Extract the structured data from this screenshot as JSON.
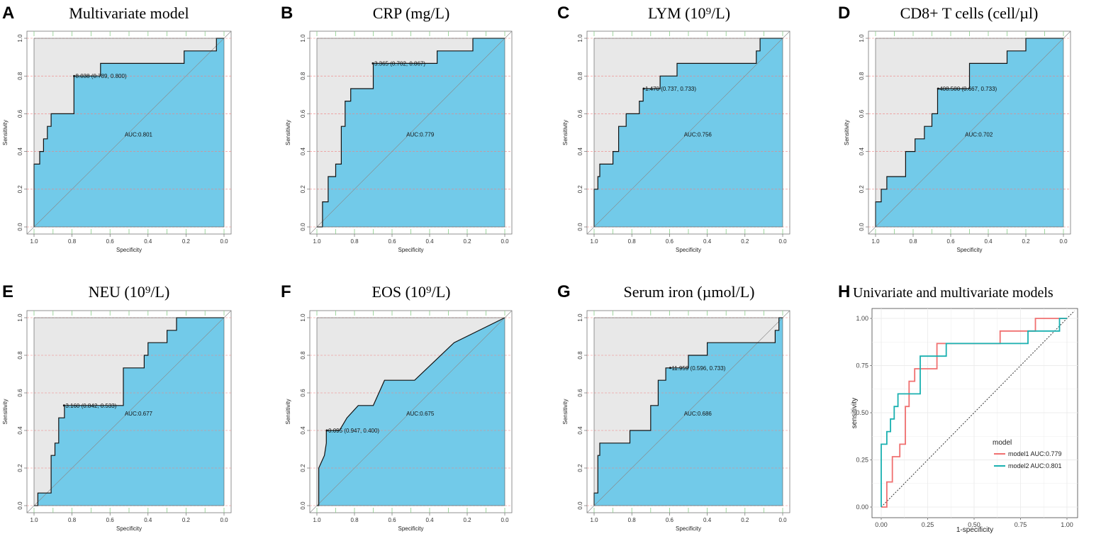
{
  "figure_labels": [
    "A",
    "B",
    "C",
    "D",
    "E",
    "F",
    "G",
    "H"
  ],
  "chart_data": [
    {
      "panel": "A",
      "type": "line",
      "title": "Multivariate model",
      "xlabel": "Specificity",
      "ylabel": "Sensitivity",
      "xlim": [
        1.0,
        0.0
      ],
      "ylim": [
        0.0,
        1.0
      ],
      "xticks": [
        "1.0",
        "0.8",
        "0.6",
        "0.4",
        "0.2",
        "0.0"
      ],
      "yticks": [
        "0.0",
        "0.2",
        "0.4",
        "0.6",
        "0.8",
        "1.0"
      ],
      "auc_label": "AUC:0.801",
      "threshold_label": "8.038 (0.789, 0.800)",
      "threshold_point": {
        "specificity": 0.789,
        "sensitivity": 0.8
      },
      "roc": [
        [
          1.0,
          0.0
        ],
        [
          1.0,
          0.333
        ],
        [
          0.97,
          0.333
        ],
        [
          0.97,
          0.4
        ],
        [
          0.95,
          0.4
        ],
        [
          0.95,
          0.467
        ],
        [
          0.93,
          0.467
        ],
        [
          0.93,
          0.533
        ],
        [
          0.91,
          0.533
        ],
        [
          0.91,
          0.6
        ],
        [
          0.79,
          0.6
        ],
        [
          0.79,
          0.8
        ],
        [
          0.65,
          0.8
        ],
        [
          0.65,
          0.867
        ],
        [
          0.21,
          0.867
        ],
        [
          0.21,
          0.933
        ],
        [
          0.04,
          0.933
        ],
        [
          0.04,
          1.0
        ],
        [
          0.0,
          1.0
        ]
      ]
    },
    {
      "panel": "B",
      "type": "line",
      "title": "CRP (mg/L)",
      "xlabel": "Specificity",
      "ylabel": "Sensitivity",
      "xlim": [
        1.0,
        0.0
      ],
      "ylim": [
        0.0,
        1.0
      ],
      "xticks": [
        "1.0",
        "0.8",
        "0.6",
        "0.4",
        "0.2",
        "0.0"
      ],
      "yticks": [
        "0.0",
        "0.2",
        "0.4",
        "0.6",
        "0.8",
        "1.0"
      ],
      "auc_label": "AUC:0.779",
      "threshold_label": "3.365 (0.702, 0.867)",
      "threshold_point": {
        "specificity": 0.702,
        "sensitivity": 0.867
      },
      "roc": [
        [
          1.0,
          0.0
        ],
        [
          0.97,
          0.0
        ],
        [
          0.97,
          0.133
        ],
        [
          0.94,
          0.133
        ],
        [
          0.94,
          0.267
        ],
        [
          0.9,
          0.267
        ],
        [
          0.9,
          0.333
        ],
        [
          0.87,
          0.333
        ],
        [
          0.87,
          0.533
        ],
        [
          0.85,
          0.533
        ],
        [
          0.85,
          0.667
        ],
        [
          0.82,
          0.667
        ],
        [
          0.82,
          0.733
        ],
        [
          0.7,
          0.733
        ],
        [
          0.7,
          0.867
        ],
        [
          0.36,
          0.867
        ],
        [
          0.36,
          0.933
        ],
        [
          0.17,
          0.933
        ],
        [
          0.17,
          1.0
        ],
        [
          0.0,
          1.0
        ]
      ]
    },
    {
      "panel": "C",
      "type": "line",
      "title": "LYM (10⁹/L)",
      "xlabel": "Specificity",
      "ylabel": "Sensitivity",
      "xlim": [
        1.0,
        0.0
      ],
      "ylim": [
        0.0,
        1.0
      ],
      "xticks": [
        "1.0",
        "0.8",
        "0.6",
        "0.4",
        "0.2",
        "0.0"
      ],
      "yticks": [
        "0.0",
        "0.2",
        "0.4",
        "0.6",
        "0.8",
        "1.0"
      ],
      "auc_label": "AUC:0.756",
      "threshold_label": "1.470 (0.737, 0.733)",
      "threshold_point": {
        "specificity": 0.737,
        "sensitivity": 0.733
      },
      "roc": [
        [
          1.0,
          0.0
        ],
        [
          1.0,
          0.2
        ],
        [
          0.98,
          0.2
        ],
        [
          0.98,
          0.267
        ],
        [
          0.97,
          0.267
        ],
        [
          0.97,
          0.333
        ],
        [
          0.9,
          0.333
        ],
        [
          0.9,
          0.4
        ],
        [
          0.87,
          0.4
        ],
        [
          0.87,
          0.533
        ],
        [
          0.83,
          0.533
        ],
        [
          0.83,
          0.6
        ],
        [
          0.76,
          0.6
        ],
        [
          0.76,
          0.667
        ],
        [
          0.74,
          0.667
        ],
        [
          0.74,
          0.733
        ],
        [
          0.65,
          0.733
        ],
        [
          0.65,
          0.8
        ],
        [
          0.56,
          0.8
        ],
        [
          0.56,
          0.867
        ],
        [
          0.14,
          0.867
        ],
        [
          0.14,
          0.933
        ],
        [
          0.12,
          0.933
        ],
        [
          0.12,
          1.0
        ],
        [
          0.0,
          1.0
        ]
      ]
    },
    {
      "panel": "D",
      "type": "line",
      "title": "CD8+ T cells (cell/µl)",
      "xlabel": "Specificity",
      "ylabel": "Sensitivity",
      "xlim": [
        1.0,
        0.0
      ],
      "ylim": [
        0.0,
        1.0
      ],
      "xticks": [
        "1.0",
        "0.8",
        "0.6",
        "0.4",
        "0.2",
        "0.0"
      ],
      "yticks": [
        "0.0",
        "0.2",
        "0.4",
        "0.6",
        "0.8",
        "1.0"
      ],
      "auc_label": "AUC:0.702",
      "threshold_label": "408.500 (0.667, 0.733)",
      "threshold_point": {
        "specificity": 0.667,
        "sensitivity": 0.733
      },
      "roc": [
        [
          1.0,
          0.0
        ],
        [
          1.0,
          0.133
        ],
        [
          0.97,
          0.133
        ],
        [
          0.97,
          0.2
        ],
        [
          0.94,
          0.2
        ],
        [
          0.94,
          0.267
        ],
        [
          0.84,
          0.267
        ],
        [
          0.84,
          0.4
        ],
        [
          0.79,
          0.4
        ],
        [
          0.79,
          0.467
        ],
        [
          0.74,
          0.467
        ],
        [
          0.74,
          0.533
        ],
        [
          0.7,
          0.533
        ],
        [
          0.7,
          0.6
        ],
        [
          0.67,
          0.6
        ],
        [
          0.67,
          0.733
        ],
        [
          0.5,
          0.733
        ],
        [
          0.5,
          0.867
        ],
        [
          0.3,
          0.867
        ],
        [
          0.3,
          0.933
        ],
        [
          0.2,
          0.933
        ],
        [
          0.2,
          1.0
        ],
        [
          0.0,
          1.0
        ]
      ]
    },
    {
      "panel": "E",
      "type": "line",
      "title": "NEU (10⁹/L)",
      "xlabel": "Specificity",
      "ylabel": "Sensitivity",
      "xlim": [
        1.0,
        0.0
      ],
      "ylim": [
        0.0,
        1.0
      ],
      "xticks": [
        "1.0",
        "0.8",
        "0.6",
        "0.4",
        "0.2",
        "0.0"
      ],
      "yticks": [
        "0.0",
        "0.2",
        "0.4",
        "0.6",
        "0.8",
        "1.0"
      ],
      "auc_label": "AUC:0.677",
      "threshold_label": "3.160 (0.842, 0.533)",
      "threshold_point": {
        "specificity": 0.842,
        "sensitivity": 0.533
      },
      "roc": [
        [
          1.0,
          0.0
        ],
        [
          0.98,
          0.0
        ],
        [
          0.98,
          0.067
        ],
        [
          0.91,
          0.067
        ],
        [
          0.91,
          0.267
        ],
        [
          0.89,
          0.267
        ],
        [
          0.89,
          0.333
        ],
        [
          0.87,
          0.333
        ],
        [
          0.87,
          0.467
        ],
        [
          0.84,
          0.467
        ],
        [
          0.84,
          0.533
        ],
        [
          0.53,
          0.533
        ],
        [
          0.53,
          0.733
        ],
        [
          0.42,
          0.733
        ],
        [
          0.42,
          0.8
        ],
        [
          0.4,
          0.8
        ],
        [
          0.4,
          0.867
        ],
        [
          0.3,
          0.867
        ],
        [
          0.3,
          0.933
        ],
        [
          0.25,
          0.933
        ],
        [
          0.25,
          1.0
        ],
        [
          0.0,
          1.0
        ]
      ]
    },
    {
      "panel": "F",
      "type": "line",
      "title": "EOS (10⁹/L)",
      "xlabel": "Specificity",
      "ylabel": "Sensitivity",
      "xlim": [
        1.0,
        0.0
      ],
      "ylim": [
        0.0,
        1.0
      ],
      "xticks": [
        "1.0",
        "0.8",
        "0.6",
        "0.4",
        "0.2",
        "0.0"
      ],
      "yticks": [
        "0.0",
        "0.2",
        "0.4",
        "0.6",
        "0.8",
        "1.0"
      ],
      "auc_label": "AUC:0.675",
      "threshold_label": "0.095 (0.947, 0.400)",
      "threshold_point": {
        "specificity": 0.947,
        "sensitivity": 0.4
      },
      "roc": [
        [
          1.0,
          0.0
        ],
        [
          0.99,
          0.0
        ],
        [
          0.99,
          0.2
        ],
        [
          0.96,
          0.267
        ],
        [
          0.95,
          0.333
        ],
        [
          0.95,
          0.4
        ],
        [
          0.88,
          0.4
        ],
        [
          0.84,
          0.467
        ],
        [
          0.78,
          0.533
        ],
        [
          0.7,
          0.533
        ],
        [
          0.64,
          0.667
        ],
        [
          0.48,
          0.667
        ],
        [
          0.27,
          0.867
        ],
        [
          0.0,
          1.0
        ]
      ]
    },
    {
      "panel": "G",
      "type": "line",
      "title": "Serum iron (µmol/L)",
      "xlabel": "Specificity",
      "ylabel": "Sensitivity",
      "xlim": [
        1.0,
        0.0
      ],
      "ylim": [
        0.0,
        1.0
      ],
      "xticks": [
        "1.0",
        "0.8",
        "0.6",
        "0.4",
        "0.2",
        "0.0"
      ],
      "yticks": [
        "0.0",
        "0.2",
        "0.4",
        "0.6",
        "0.8",
        "1.0"
      ],
      "auc_label": "AUC:0.686",
      "threshold_label": "11.959 (0.596, 0.733)",
      "threshold_point": {
        "specificity": 0.596,
        "sensitivity": 0.733
      },
      "roc": [
        [
          1.0,
          0.0
        ],
        [
          1.0,
          0.067
        ],
        [
          0.98,
          0.067
        ],
        [
          0.98,
          0.267
        ],
        [
          0.97,
          0.267
        ],
        [
          0.97,
          0.333
        ],
        [
          0.81,
          0.333
        ],
        [
          0.81,
          0.4
        ],
        [
          0.7,
          0.4
        ],
        [
          0.7,
          0.533
        ],
        [
          0.66,
          0.533
        ],
        [
          0.66,
          0.667
        ],
        [
          0.62,
          0.667
        ],
        [
          0.62,
          0.733
        ],
        [
          0.5,
          0.733
        ],
        [
          0.5,
          0.8
        ],
        [
          0.4,
          0.8
        ],
        [
          0.4,
          0.867
        ],
        [
          0.04,
          0.867
        ],
        [
          0.04,
          0.933
        ],
        [
          0.02,
          0.933
        ],
        [
          0.02,
          1.0
        ],
        [
          0.0,
          1.0
        ]
      ]
    },
    {
      "panel": "H",
      "type": "line",
      "title": "Univariate and multivariate models",
      "xlabel": "1-specificity",
      "ylabel": "sensitivity",
      "xlim": [
        0.0,
        1.0
      ],
      "ylim": [
        0.0,
        1.0
      ],
      "xticks": [
        "0.00",
        "0.25",
        "0.50",
        "0.75",
        "1.00"
      ],
      "yticks": [
        "0.00",
        "0.25",
        "0.50",
        "0.75",
        "1.00"
      ],
      "grid": true,
      "legend": {
        "title": "model",
        "position": "bottom-right"
      },
      "series": [
        {
          "name": "model1 AUC:0.779",
          "color": "#f07070",
          "points": [
            [
              0,
              0
            ],
            [
              0.03,
              0
            ],
            [
              0.03,
              0.133
            ],
            [
              0.06,
              0.133
            ],
            [
              0.06,
              0.267
            ],
            [
              0.1,
              0.267
            ],
            [
              0.1,
              0.333
            ],
            [
              0.13,
              0.333
            ],
            [
              0.13,
              0.533
            ],
            [
              0.15,
              0.533
            ],
            [
              0.15,
              0.667
            ],
            [
              0.18,
              0.667
            ],
            [
              0.18,
              0.733
            ],
            [
              0.3,
              0.733
            ],
            [
              0.3,
              0.867
            ],
            [
              0.64,
              0.867
            ],
            [
              0.64,
              0.933
            ],
            [
              0.83,
              0.933
            ],
            [
              0.83,
              1.0
            ],
            [
              1.0,
              1.0
            ]
          ]
        },
        {
          "name": "model2 AUC:0.801",
          "color": "#1ab0b0",
          "points": [
            [
              0,
              0
            ],
            [
              0,
              0.333
            ],
            [
              0.03,
              0.333
            ],
            [
              0.03,
              0.4
            ],
            [
              0.05,
              0.4
            ],
            [
              0.05,
              0.467
            ],
            [
              0.07,
              0.467
            ],
            [
              0.07,
              0.533
            ],
            [
              0.09,
              0.533
            ],
            [
              0.09,
              0.6
            ],
            [
              0.21,
              0.6
            ],
            [
              0.21,
              0.8
            ],
            [
              0.35,
              0.8
            ],
            [
              0.35,
              0.867
            ],
            [
              0.79,
              0.867
            ],
            [
              0.79,
              0.933
            ],
            [
              0.96,
              0.933
            ],
            [
              0.96,
              1.0
            ],
            [
              1.0,
              1.0
            ]
          ]
        }
      ],
      "reference_line": "diagonal"
    }
  ],
  "colors": {
    "roc_fill": "#72cae9",
    "upper_fill": "#e8e8e8",
    "grid_red": "#f08080",
    "grid_green": "#88cc88",
    "diag": "#888888"
  }
}
